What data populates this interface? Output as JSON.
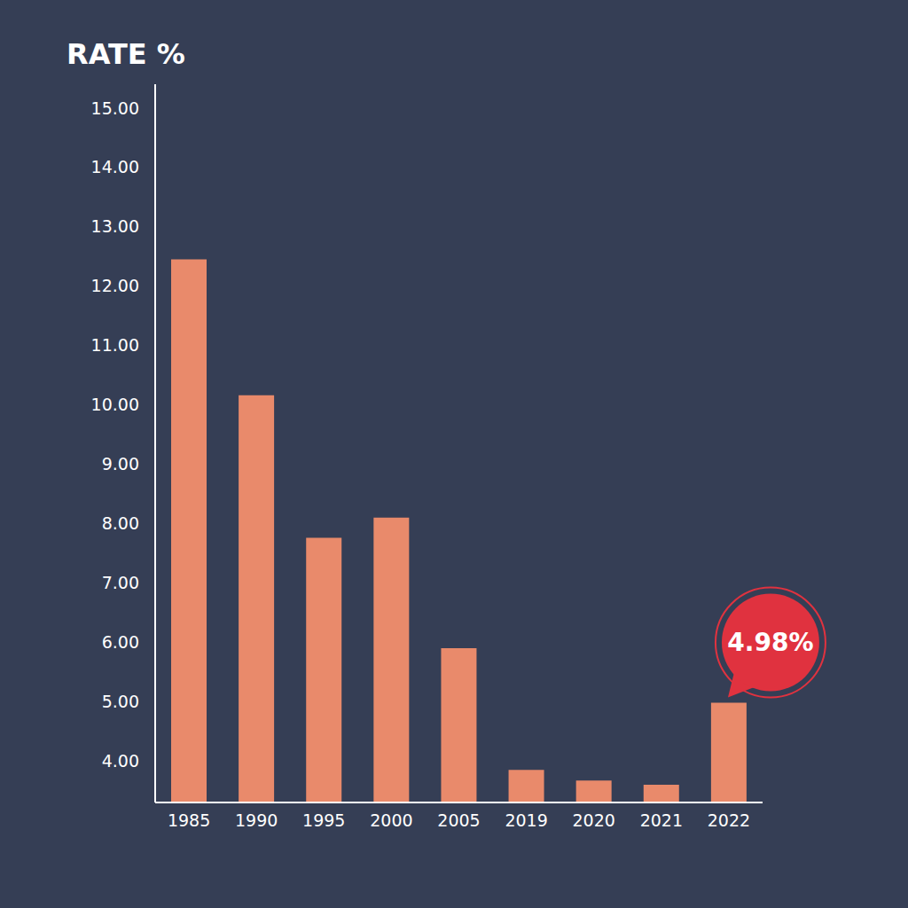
{
  "chart_data": {
    "type": "bar",
    "y_label": "RATE %",
    "categories": [
      "1985",
      "1990",
      "1995",
      "2000",
      "2005",
      "2019",
      "2020",
      "2021",
      "2022"
    ],
    "values": [
      12.45,
      10.16,
      7.76,
      8.1,
      5.9,
      3.85,
      3.67,
      3.6,
      4.98
    ],
    "color": "#e98a6b",
    "ylim": [
      3.3,
      15.4
    ],
    "yticks": [
      {
        "value": 4,
        "label": "4.00"
      },
      {
        "value": 5,
        "label": "5.00"
      },
      {
        "value": 6,
        "label": "6.00"
      },
      {
        "value": 7,
        "label": "7.00"
      },
      {
        "value": 8,
        "label": "8.00"
      },
      {
        "value": 9,
        "label": "9.00"
      },
      {
        "value": 10,
        "label": "10.00"
      },
      {
        "value": 11,
        "label": "11.00"
      },
      {
        "value": 12,
        "label": "12.00"
      },
      {
        "value": 13,
        "label": "13.00"
      },
      {
        "value": 14,
        "label": "14.00"
      },
      {
        "value": 15,
        "label": "15.00"
      }
    ],
    "grid": false,
    "annotations": [
      {
        "category": "2022",
        "value": 4.98,
        "text": "4.98%"
      }
    ]
  }
}
